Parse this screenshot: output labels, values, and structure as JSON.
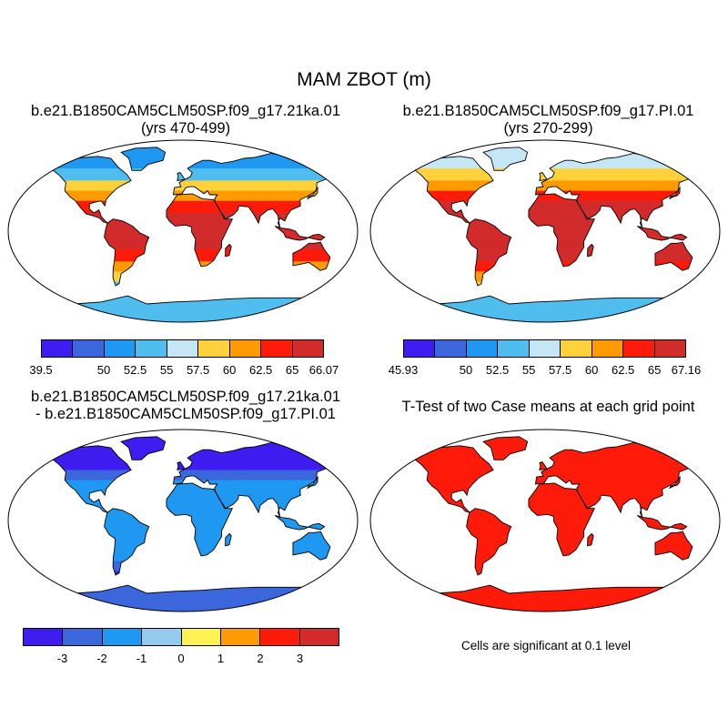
{
  "title": "MAM ZBOT (m)",
  "panels": [
    {
      "line1": "b.e21.B1850CAM5CLM50SP.f09_g17.21ka.01",
      "line2": "(yrs 470-499)"
    },
    {
      "line1": "b.e21.B1850CAM5CLM50SP.f09_g17.PI.01",
      "line2": "(yrs 270-299)"
    },
    {
      "line1": "b.e21.B1850CAM5CLM50SP.f09_g17.21ka.01",
      "line2": "- b.e21.B1850CAM5CLM50SP.f09_g17.PI.01"
    },
    {
      "line1": "T-Test of two Case means at each grid point",
      "line2": ""
    }
  ],
  "significance_note": "Cells are significant at 0.1 level",
  "colorbars": [
    {
      "colors": [
        "#3f1df0",
        "#3c66dc",
        "#1e98f0",
        "#4fbdee",
        "#c5e6f5",
        "#ffd23c",
        "#ff9a00",
        "#ff1b0a",
        "#d22b2b"
      ],
      "labels": [
        "39.5",
        "50",
        "52.5",
        "55",
        "57.5",
        "60",
        "62.5",
        "65",
        "66.07"
      ],
      "positions": [
        0,
        0.222,
        0.333,
        0.444,
        0.555,
        0.666,
        0.777,
        0.888,
        1
      ]
    },
    {
      "colors": [
        "#3f1df0",
        "#3c66dc",
        "#1e98f0",
        "#4fbdee",
        "#c5e6f5",
        "#ffd23c",
        "#ff9a00",
        "#ff1b0a",
        "#d22b2b"
      ],
      "labels": [
        "45.93",
        "50",
        "52.5",
        "55",
        "57.5",
        "60",
        "62.5",
        "65",
        "67.16"
      ],
      "positions": [
        0,
        0.222,
        0.333,
        0.444,
        0.555,
        0.666,
        0.777,
        0.888,
        1
      ]
    },
    {
      "colors": [
        "#3f1df0",
        "#3c66dc",
        "#1e98f0",
        "#94cbec",
        "#fff153",
        "#ff9a00",
        "#ff1b0a",
        "#d22b2b"
      ],
      "labels": [
        "-3",
        "-2",
        "-1",
        "0",
        "1",
        "2",
        "3"
      ],
      "positions": [
        0.125,
        0.25,
        0.375,
        0.5,
        0.625,
        0.75,
        0.875
      ]
    }
  ],
  "map_fill": {
    "map1": {
      "tropics": "#d22b2b",
      "subtropics": "#ff1b0a",
      "mid": "#ff9a00",
      "midhigh": "#ffd23c",
      "high": "#4fbdee",
      "polar": "#1e98f0",
      "ice": "#4fbdee"
    },
    "map2": {
      "tropics": "#d22b2b",
      "subtropics": "#d22b2b",
      "mid": "#ff1b0a",
      "midhigh": "#ff9a00",
      "high": "#ffd23c",
      "polar": "#c5e6f5",
      "ice": "#4fbdee"
    },
    "map3": {
      "tropics": "#1e98f0",
      "subtropics": "#1e98f0",
      "mid": "#1e98f0",
      "midhigh": "#3c66dc",
      "high": "#3f1df0",
      "polar": "#3f1df0",
      "ice": "#3c66dc"
    },
    "map4": {
      "tropics": "#ff1b0a",
      "subtropics": "#ff1b0a",
      "mid": "#ff1b0a",
      "midhigh": "#ff1b0a",
      "high": "#ff1b0a",
      "polar": "#ff1b0a",
      "ice": "#ff1b0a"
    }
  }
}
